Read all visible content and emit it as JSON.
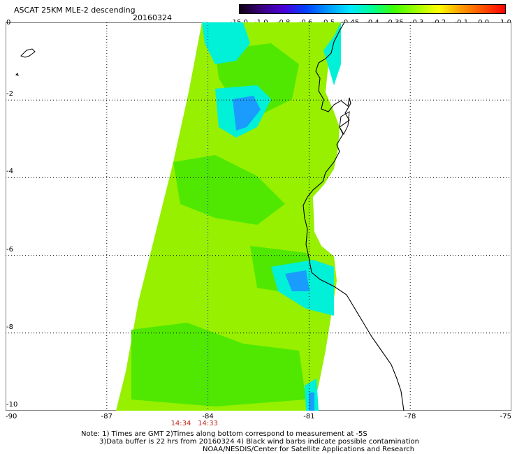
{
  "header": {
    "title": "ASCAT 25KM MLE-2 descending",
    "date": "20160324"
  },
  "colorbar": {
    "labels": [
      "-15.0",
      "-1.0",
      "-0.8",
      "-0.6",
      "-0.5",
      "-0.45",
      "-0.4",
      "-0.35",
      "-0.3",
      "-0.2",
      "-0.1",
      "0.0",
      "1.0"
    ],
    "colors": [
      "#100010",
      "#3a0080",
      "#4a00d8",
      "#0040ff",
      "#0098ff",
      "#00e8ff",
      "#00ff90",
      "#40ff00",
      "#a0ff00",
      "#ffff00",
      "#ff9c00",
      "#ff5000",
      "#ff0000"
    ]
  },
  "axes": {
    "x_ticks": [
      {
        "value": -90,
        "label": "-90"
      },
      {
        "value": -87,
        "label": "-87"
      },
      {
        "value": -84,
        "label": "-84"
      },
      {
        "value": -81,
        "label": "-81"
      },
      {
        "value": -78,
        "label": "-78"
      },
      {
        "value": -75,
        "label": "-75"
      }
    ],
    "y_ticks": [
      {
        "value": 0,
        "label": "0"
      },
      {
        "value": -2,
        "label": "-2"
      },
      {
        "value": -4,
        "label": "-4"
      },
      {
        "value": -6,
        "label": "-6"
      },
      {
        "value": -8,
        "label": "-8"
      },
      {
        "value": -10,
        "label": "-10"
      }
    ],
    "lon_range": [
      -90,
      -75
    ],
    "lat_range": [
      -10,
      0
    ]
  },
  "times": [
    {
      "label": "14:34",
      "lon": -84.8
    },
    {
      "label": "14:33",
      "lon": -84.0
    }
  ],
  "notes": {
    "line1": "Note: 1) Times are GMT 2)Times along bottom correspond to measurement at -5S",
    "line2": "3)Data buffer is 22 hrs from 20160324 4) Black wind barbs indicate possible contamination",
    "line3": "NOAA/NESDIS/Center for Satellite Applications and Research"
  },
  "colors": {
    "swath_base": "#96f000",
    "swath_dark": "#50e800",
    "cyan": "#00f0d8",
    "blue": "#1a9cff",
    "coast": "#000000",
    "grid": "#000000",
    "meridian_center": "#2020ff",
    "time_label": "#c0281c"
  }
}
